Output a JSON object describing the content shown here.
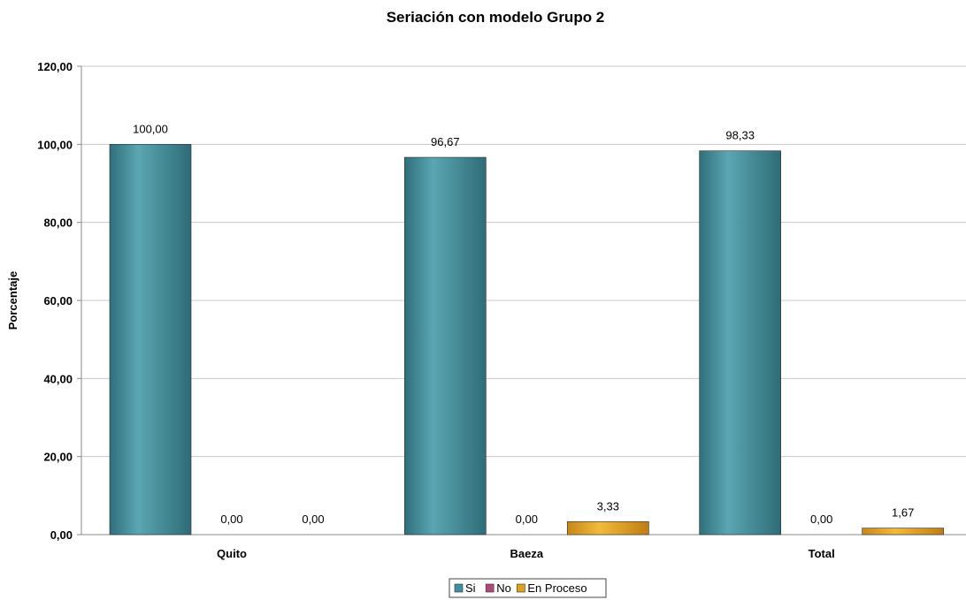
{
  "chart_data": {
    "type": "bar",
    "title": "Seriación con modelo Grupo 2",
    "xlabel": "",
    "ylabel": "Porcentaje",
    "categories": [
      "Quito",
      "Baeza",
      "Total"
    ],
    "series": [
      {
        "name": "Si",
        "color": "#3f8f9c",
        "values": [
          100.0,
          96.67,
          98.33
        ],
        "labels": [
          "100,00",
          "96,67",
          "98,33"
        ]
      },
      {
        "name": "No",
        "color": "#b0487a",
        "values": [
          0.0,
          0.0,
          0.0
        ],
        "labels": [
          "0,00",
          "0,00",
          "0,00"
        ]
      },
      {
        "name": "En Proceso",
        "color": "#e0a21a",
        "values": [
          0.0,
          3.33,
          1.67
        ],
        "labels": [
          "0,00",
          "3,33",
          "1,67"
        ]
      }
    ],
    "ylim": [
      0,
      120
    ],
    "yticks": [
      0,
      20,
      40,
      60,
      80,
      100,
      120
    ],
    "ytick_labels": [
      "0,00",
      "20,00",
      "40,00",
      "60,00",
      "80,00",
      "100,00",
      "120,00"
    ],
    "grid": true,
    "legend_position": "bottom"
  }
}
